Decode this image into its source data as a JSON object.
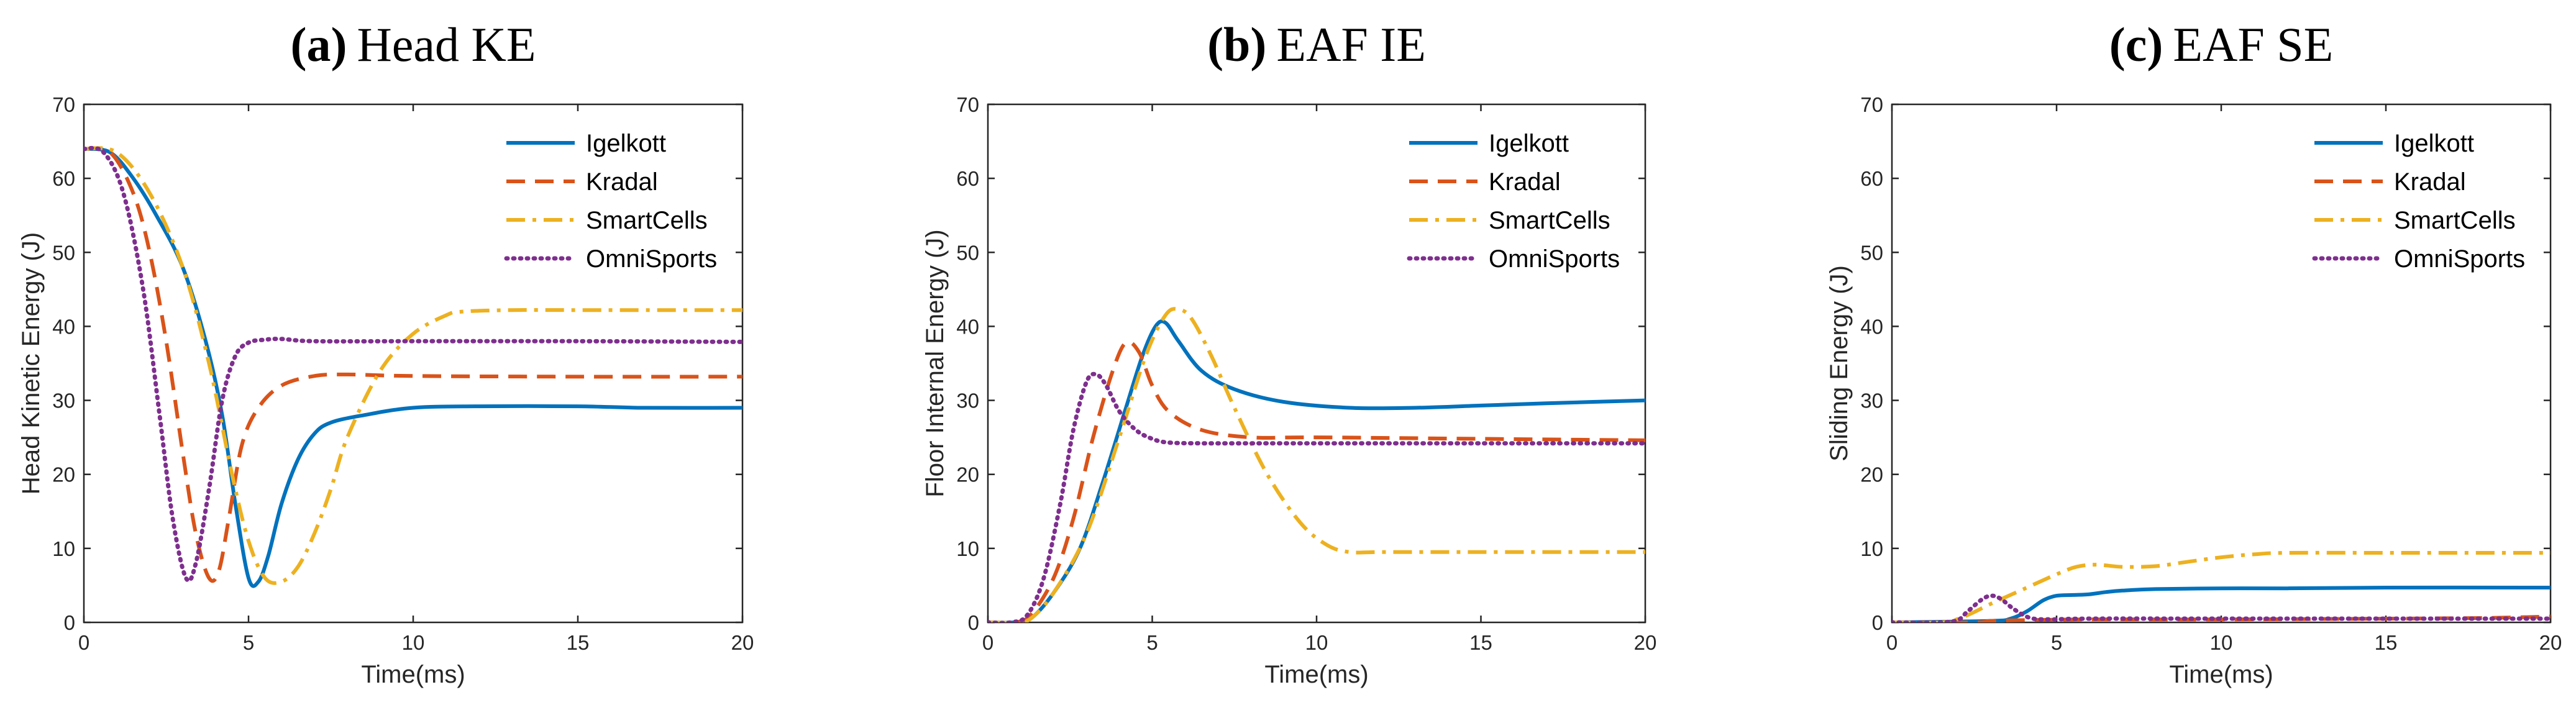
{
  "figure": {
    "panel_count": 3
  },
  "colors": {
    "Igelkott": "#0072BD",
    "Kradal": "#D95319",
    "SmartCells": "#EDB120",
    "OmniSports": "#7E2F8E"
  },
  "chart_data": [
    {
      "type": "line",
      "panel": "a",
      "title_tag": "(a)",
      "title_text": "Head KE",
      "xlabel": "Time(ms)",
      "ylabel": "Head Kinetic Energy (J)",
      "xlim": [
        0,
        20
      ],
      "ylim": [
        0,
        70
      ],
      "xticks": [
        0,
        5,
        10,
        15,
        20
      ],
      "yticks": [
        0,
        10,
        20,
        30,
        40,
        50,
        60,
        70
      ],
      "legend": "top-right",
      "series": [
        {
          "name": "Igelkott",
          "style": "solid",
          "x": [
            0,
            0.8,
            1.5,
            2.2,
            3,
            3.7,
            4.2,
            4.6,
            5,
            5.3,
            5.6,
            6,
            6.5,
            7,
            7.5,
            8.5,
            10,
            12,
            15,
            17,
            20
          ],
          "y": [
            64,
            63.5,
            60,
            55,
            48,
            38,
            28,
            16,
            6,
            5.5,
            9,
            16,
            22,
            25.5,
            27,
            28,
            29,
            29.2,
            29.2,
            29,
            29
          ]
        },
        {
          "name": "Kradal",
          "style": "dashed",
          "x": [
            0,
            0.8,
            1.5,
            2,
            2.5,
            3,
            3.4,
            3.8,
            4.1,
            4.4,
            4.8,
            5.3,
            6,
            7,
            8,
            10,
            15,
            20
          ],
          "y": [
            64,
            63.5,
            58,
            50,
            38,
            23,
            12,
            6,
            7,
            14,
            24,
            29,
            32,
            33.3,
            33.5,
            33.3,
            33.2,
            33.2
          ]
        },
        {
          "name": "SmartCells",
          "style": "dashdot",
          "x": [
            0,
            1,
            2,
            3,
            3.8,
            4.5,
            5,
            5.5,
            6,
            6.5,
            7,
            7.5,
            8,
            9,
            10,
            11,
            11.5,
            13,
            15,
            20
          ],
          "y": [
            64,
            63.5,
            58,
            48,
            35,
            20,
            11,
            6,
            5.5,
            7.5,
            12,
            18,
            25,
            34,
            39,
            41.5,
            42,
            42.2,
            42.2,
            42.2
          ]
        },
        {
          "name": "OmniSports",
          "style": "dotted",
          "x": [
            0,
            0.6,
            1.2,
            1.8,
            2.3,
            2.7,
            3.1,
            3.4,
            3.8,
            4.2,
            4.6,
            5,
            5.5,
            6,
            7,
            10,
            15,
            20
          ],
          "y": [
            64,
            63.5,
            58,
            45,
            28,
            14,
            6,
            8,
            18,
            30,
            36,
            37.8,
            38.2,
            38.3,
            38,
            38,
            38,
            37.9
          ]
        }
      ]
    },
    {
      "type": "line",
      "panel": "b",
      "title_tag": "(b)",
      "title_text": "EAF IE",
      "xlabel": "Time(ms)",
      "ylabel": "Floor Internal Energy (J)",
      "xlim": [
        0,
        20
      ],
      "ylim": [
        0,
        70
      ],
      "xticks": [
        0,
        5,
        10,
        15,
        20
      ],
      "yticks": [
        0,
        10,
        20,
        30,
        40,
        50,
        60,
        70
      ],
      "legend": "top-right",
      "series": [
        {
          "name": "Igelkott",
          "style": "solid",
          "x": [
            0,
            0.8,
            1.3,
            2,
            2.8,
            3.5,
            4.2,
            4.7,
            5.1,
            5.4,
            5.8,
            6.5,
            7.5,
            9,
            11,
            13,
            15,
            17,
            20
          ],
          "y": [
            0,
            0,
            0.5,
            4,
            10,
            19,
            29,
            36,
            40,
            40.5,
            38,
            34,
            31.5,
            29.8,
            29,
            29,
            29.3,
            29.6,
            30
          ]
        },
        {
          "name": "Kradal",
          "style": "dashed",
          "x": [
            0,
            0.8,
            1.3,
            2,
            2.6,
            3.2,
            3.8,
            4.2,
            4.6,
            5,
            5.5,
            6.5,
            8,
            10,
            15,
            20
          ],
          "y": [
            0,
            0,
            1,
            6,
            14,
            25,
            34,
            37.8,
            36.5,
            32,
            28.5,
            26,
            25,
            25,
            24.8,
            24.6
          ]
        },
        {
          "name": "SmartCells",
          "style": "dashdot",
          "x": [
            0,
            0.8,
            1.3,
            2,
            3,
            4,
            4.8,
            5.4,
            5.8,
            6.2,
            6.8,
            7.5,
            8.5,
            9.5,
            10.3,
            11,
            12,
            15,
            20
          ],
          "y": [
            0,
            0,
            0.5,
            4,
            12,
            25,
            36,
            41.5,
            42.3,
            41,
            36,
            29,
            20,
            13.5,
            10.5,
            9.5,
            9.5,
            9.5,
            9.5
          ]
        },
        {
          "name": "OmniSports",
          "style": "dotted",
          "x": [
            0,
            0.7,
            1.2,
            1.7,
            2.2,
            2.6,
            3,
            3.3,
            3.6,
            4,
            4.5,
            5,
            5.5,
            6.5,
            8,
            10,
            15,
            20
          ],
          "y": [
            0,
            0,
            1,
            6,
            16,
            26,
            32.5,
            33.5,
            32,
            28.5,
            26,
            24.8,
            24.3,
            24.2,
            24.2,
            24.2,
            24.2,
            24.2
          ]
        }
      ]
    },
    {
      "type": "line",
      "panel": "c",
      "title_tag": "(c)",
      "title_text": "EAF SE",
      "xlabel": "Time(ms)",
      "ylabel": "Sliding Energy (J)",
      "xlim": [
        0,
        20
      ],
      "ylim": [
        0,
        70
      ],
      "xticks": [
        0,
        5,
        10,
        15,
        20
      ],
      "yticks": [
        0,
        10,
        20,
        30,
        40,
        50,
        60,
        70
      ],
      "legend": "top-right",
      "series": [
        {
          "name": "Igelkott",
          "style": "solid",
          "x": [
            0,
            3,
            3.6,
            4.1,
            4.6,
            5,
            5.5,
            6,
            6.5,
            7,
            8,
            10,
            12,
            15,
            20
          ],
          "y": [
            0,
            0.2,
            0.5,
            1.5,
            3,
            3.6,
            3.7,
            3.8,
            4.1,
            4.3,
            4.5,
            4.6,
            4.6,
            4.7,
            4.7
          ]
        },
        {
          "name": "Kradal",
          "style": "dashed",
          "x": [
            0,
            2.5,
            3,
            4,
            6,
            10,
            15,
            18,
            20
          ],
          "y": [
            0,
            0,
            0.2,
            0.3,
            0.4,
            0.4,
            0.5,
            0.6,
            0.8
          ]
        },
        {
          "name": "SmartCells",
          "style": "dashdot",
          "x": [
            0,
            1.5,
            2.2,
            3,
            4,
            5,
            5.6,
            6.2,
            7,
            8,
            9,
            10,
            11,
            12,
            15,
            20
          ],
          "y": [
            0,
            0,
            0.8,
            2.5,
            4.5,
            6.5,
            7.5,
            7.8,
            7.5,
            7.6,
            8.2,
            8.8,
            9.2,
            9.4,
            9.4,
            9.4
          ]
        },
        {
          "name": "OmniSports",
          "style": "dotted",
          "x": [
            0,
            1.8,
            2.3,
            2.7,
            3,
            3.3,
            3.7,
            4.2,
            4.8,
            6,
            10,
            15,
            20
          ],
          "y": [
            0,
            0.1,
            1.5,
            3,
            3.6,
            3.2,
            1.8,
            0.6,
            0.4,
            0.5,
            0.5,
            0.5,
            0.5
          ]
        }
      ]
    }
  ]
}
